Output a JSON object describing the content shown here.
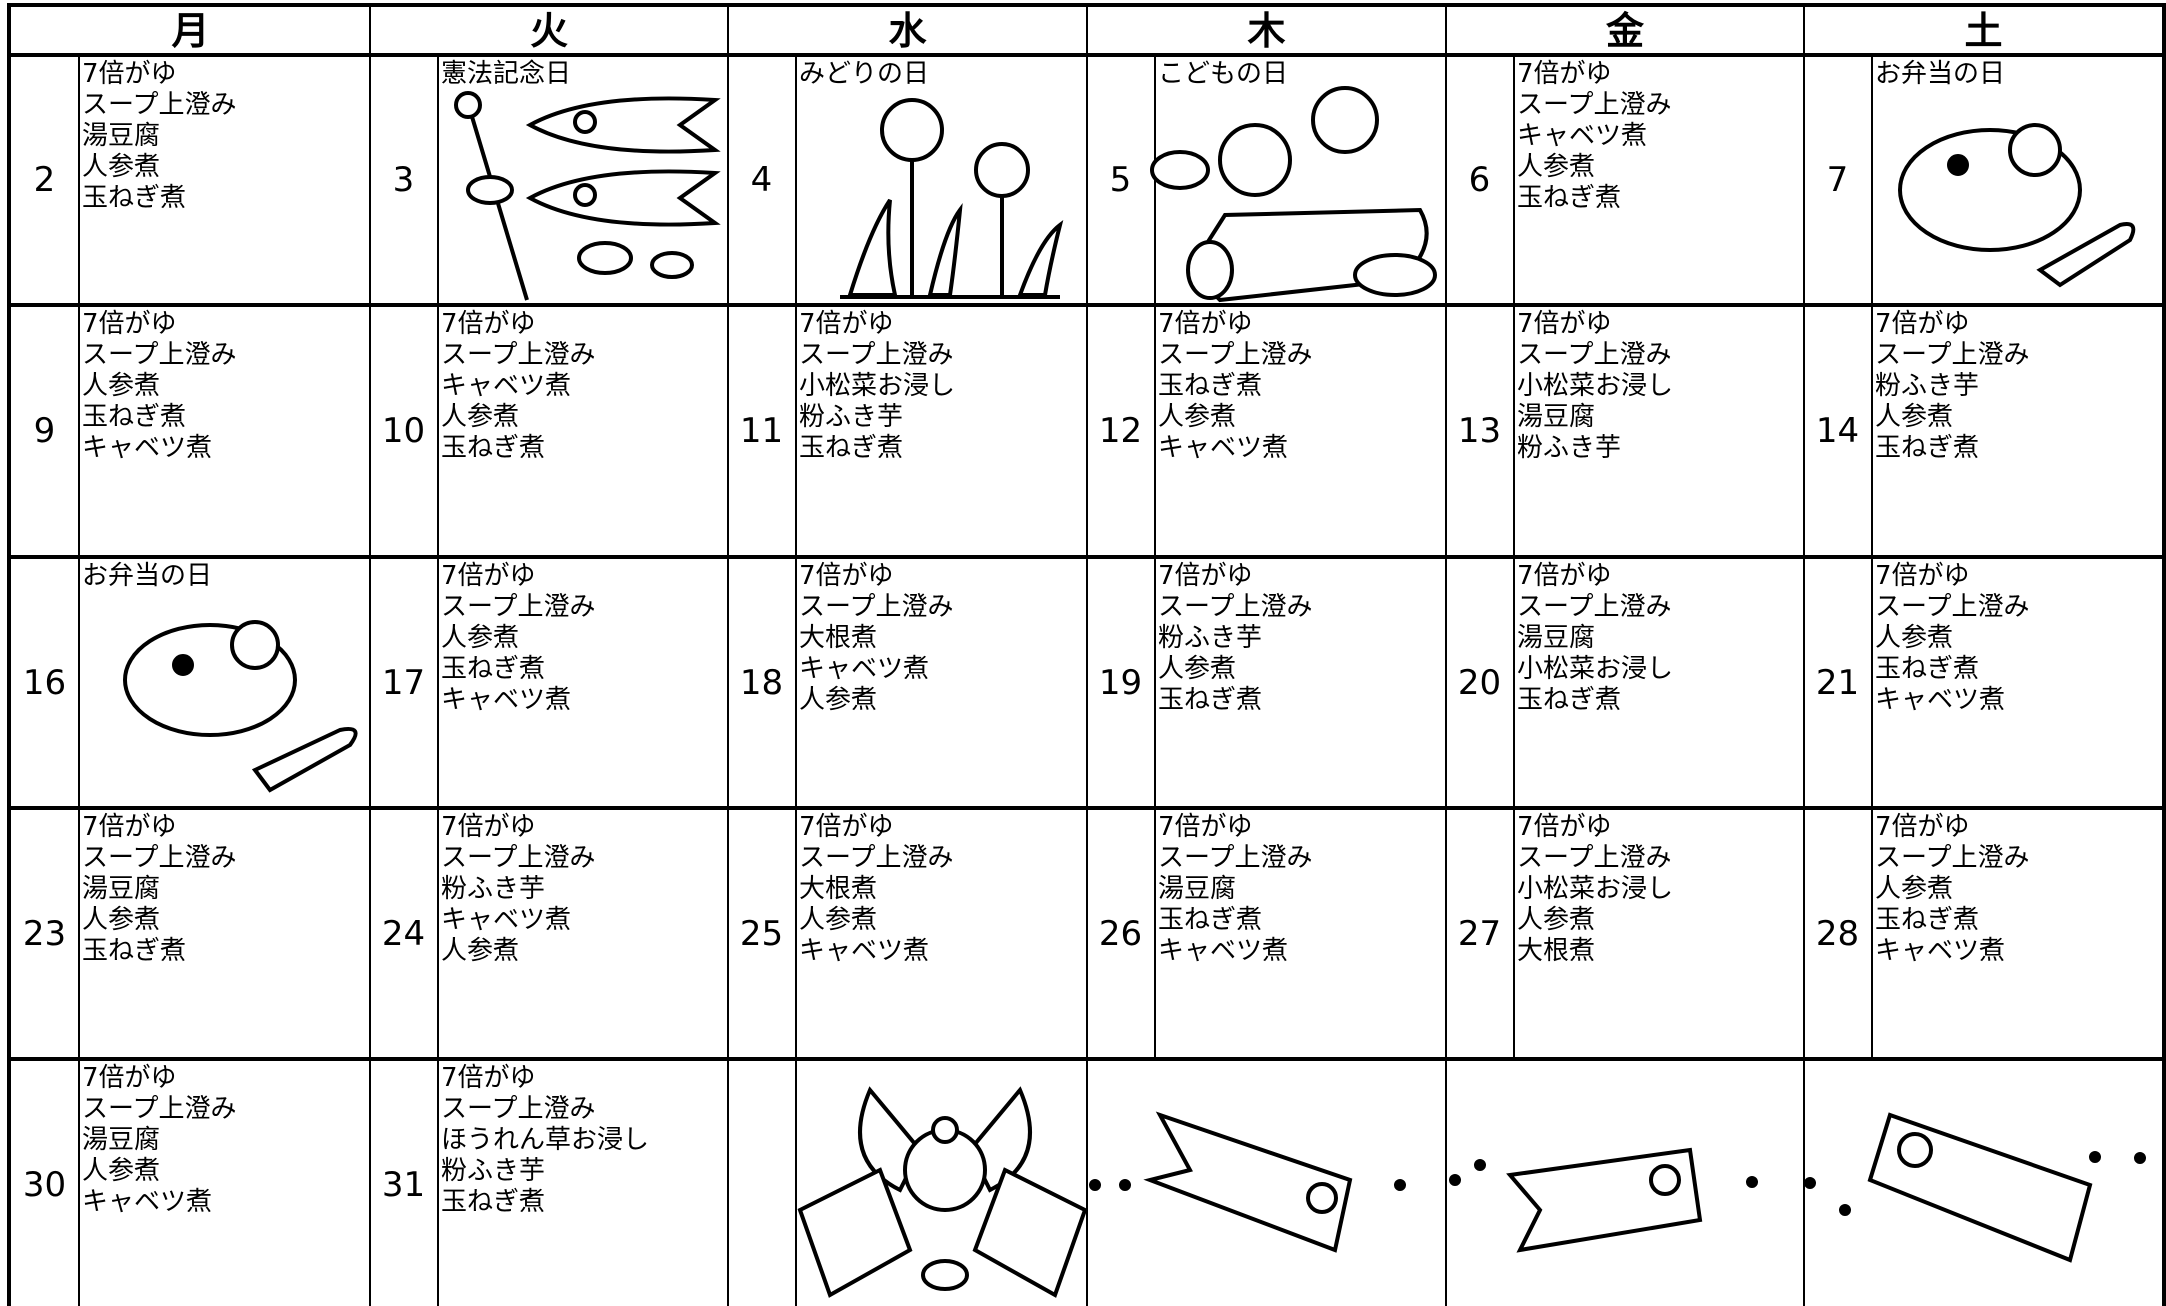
{
  "header": {
    "days": [
      "月",
      "火",
      "水",
      "木",
      "金",
      "土"
    ]
  },
  "weeks": [
    {
      "cells": [
        {
          "date": "2",
          "lines": [
            "7倍がゆ",
            "スープ上澄み",
            "湯豆腐",
            "人参煮",
            "玉ねぎ煮"
          ]
        },
        {
          "date": "3",
          "lines": [
            "憲法記念日"
          ]
        },
        {
          "date": "4",
          "lines": [
            "みどりの日"
          ]
        },
        {
          "date": "5",
          "lines": [
            "こどもの日"
          ]
        },
        {
          "date": "6",
          "lines": [
            "7倍がゆ",
            "スープ上澄み",
            "キャベツ煮",
            "人参煮",
            "玉ねぎ煮"
          ]
        },
        {
          "date": "7",
          "lines": [
            "お弁当の日"
          ]
        }
      ]
    },
    {
      "cells": [
        {
          "date": "9",
          "lines": [
            "7倍がゆ",
            "スープ上澄み",
            "人参煮",
            "玉ねぎ煮",
            "キャベツ煮"
          ]
        },
        {
          "date": "10",
          "lines": [
            "7倍がゆ",
            "スープ上澄み",
            "キャベツ煮",
            "人参煮",
            "玉ねぎ煮"
          ]
        },
        {
          "date": "11",
          "lines": [
            "7倍がゆ",
            "スープ上澄み",
            "小松菜お浸し",
            "粉ふき芋",
            "玉ねぎ煮"
          ]
        },
        {
          "date": "12",
          "lines": [
            "7倍がゆ",
            "スープ上澄み",
            "玉ねぎ煮",
            "人参煮",
            "キャベツ煮"
          ]
        },
        {
          "date": "13",
          "lines": [
            "7倍がゆ",
            "スープ上澄み",
            "小松菜お浸し",
            "湯豆腐",
            "粉ふき芋"
          ]
        },
        {
          "date": "14",
          "lines": [
            "7倍がゆ",
            "スープ上澄み",
            "粉ふき芋",
            "人参煮",
            "玉ねぎ煮"
          ]
        }
      ]
    },
    {
      "cells": [
        {
          "date": "16",
          "lines": [
            "お弁当の日"
          ]
        },
        {
          "date": "17",
          "lines": [
            "7倍がゆ",
            "スープ上澄み",
            "人参煮",
            "玉ねぎ煮",
            "キャベツ煮"
          ]
        },
        {
          "date": "18",
          "lines": [
            "7倍がゆ",
            "スープ上澄み",
            "大根煮",
            "キャベツ煮",
            "人参煮"
          ]
        },
        {
          "date": "19",
          "lines": [
            "7倍がゆ",
            "スープ上澄み",
            "粉ふき芋",
            "人参煮",
            "玉ねぎ煮"
          ]
        },
        {
          "date": "20",
          "lines": [
            "7倍がゆ",
            "スープ上澄み",
            "湯豆腐",
            "小松菜お浸し",
            "玉ねぎ煮"
          ]
        },
        {
          "date": "21",
          "lines": [
            "7倍がゆ",
            "スープ上澄み",
            "人参煮",
            "玉ねぎ煮",
            "キャベツ煮"
          ]
        }
      ]
    },
    {
      "cells": [
        {
          "date": "23",
          "lines": [
            "7倍がゆ",
            "スープ上澄み",
            "湯豆腐",
            "人参煮",
            "玉ねぎ煮"
          ]
        },
        {
          "date": "24",
          "lines": [
            "7倍がゆ",
            "スープ上澄み",
            "粉ふき芋",
            "キャベツ煮",
            "人参煮"
          ]
        },
        {
          "date": "25",
          "lines": [
            "7倍がゆ",
            "スープ上澄み",
            "大根煮",
            "人参煮",
            "キャベツ煮"
          ]
        },
        {
          "date": "26",
          "lines": [
            "7倍がゆ",
            "スープ上澄み",
            "湯豆腐",
            "玉ねぎ煮",
            "キャベツ煮"
          ]
        },
        {
          "date": "27",
          "lines": [
            "7倍がゆ",
            "スープ上澄み",
            "小松菜お浸し",
            "人参煮",
            "大根煮"
          ]
        },
        {
          "date": "28",
          "lines": [
            "7倍がゆ",
            "スープ上澄み",
            "人参煮",
            "玉ねぎ煮",
            "キャベツ煮"
          ]
        }
      ]
    },
    {
      "cells": [
        {
          "date": "30",
          "lines": [
            "7倍がゆ",
            "スープ上澄み",
            "湯豆腐",
            "人参煮",
            "キャベツ煮"
          ]
        },
        {
          "date": "31",
          "lines": [
            "7倍がゆ",
            "スープ上澄み",
            "ほうれん草お浸し",
            "粉ふき芋",
            "玉ねぎ煮"
          ]
        }
      ]
    }
  ]
}
